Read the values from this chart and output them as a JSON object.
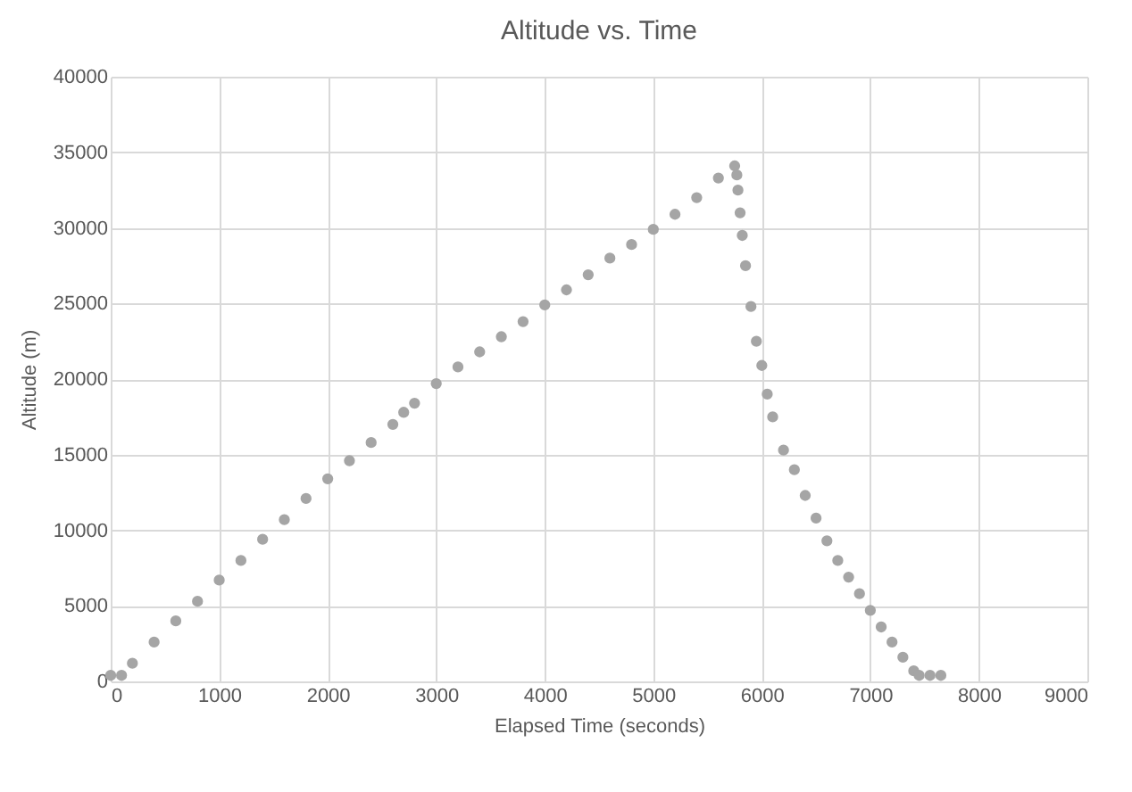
{
  "chart_data": {
    "type": "scatter",
    "title": "Altitude vs. Time",
    "xlabel": "Elapsed Time (seconds)",
    "ylabel": "Altitude (m)",
    "x": [
      0,
      100,
      200,
      400,
      600,
      800,
      1000,
      1200,
      1400,
      1600,
      1800,
      2000,
      2200,
      2400,
      2600,
      2700,
      2800,
      3000,
      3200,
      3400,
      3600,
      3800,
      4000,
      4200,
      4400,
      4600,
      4800,
      5000,
      5200,
      5400,
      5600,
      5750,
      5770,
      5780,
      5800,
      5820,
      5850,
      5900,
      5950,
      6000,
      6050,
      6100,
      6200,
      6300,
      6400,
      6500,
      6600,
      6700,
      6800,
      6900,
      7000,
      7100,
      7200,
      7300,
      7400,
      7450,
      7550,
      7650
    ],
    "series": [
      {
        "color": "#a5a5a5",
        "values": [
          400,
          400,
          1200,
          2600,
          4000,
          5300,
          6700,
          8000,
          9400,
          10700,
          12100,
          13400,
          14600,
          15800,
          17000,
          17800,
          18400,
          19700,
          20800,
          21800,
          22800,
          23800,
          24900,
          25900,
          26900,
          28000,
          28900,
          29900,
          30900,
          32000,
          33300,
          34100,
          33500,
          32500,
          31000,
          29500,
          27500,
          24800,
          22500,
          20900,
          19000,
          17500,
          15300,
          14000,
          12300,
          10800,
          9300,
          8000,
          6900,
          5800,
          4700,
          3600,
          2600,
          1600,
          700,
          400,
          400,
          400
        ]
      }
    ],
    "xlim": [
      0,
      9000
    ],
    "xticks": [
      0,
      1000,
      2000,
      3000,
      4000,
      5000,
      6000,
      7000,
      8000,
      9000
    ],
    "ylim": [
      0,
      40000
    ],
    "yticks": [
      0,
      5000,
      10000,
      15000,
      20000,
      25000,
      30000,
      35000,
      40000
    ],
    "grid": true,
    "marker": "circle",
    "legend": false
  }
}
